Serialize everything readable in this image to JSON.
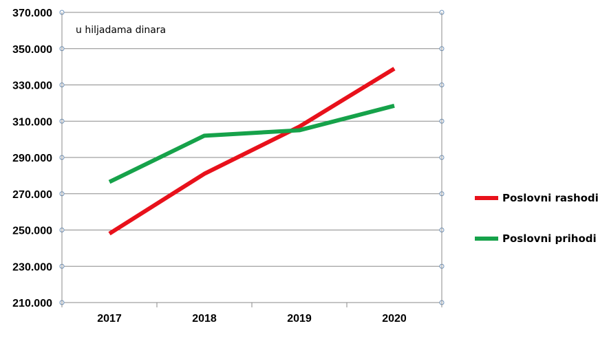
{
  "chart_data": {
    "type": "line",
    "annotation": "u hiljadama dinara",
    "categories": [
      "2017",
      "2018",
      "2019",
      "2020"
    ],
    "y_tick_labels": [
      "210.000",
      "230.000",
      "250.000",
      "270.000",
      "290.000",
      "310.000",
      "330.000",
      "350.000",
      "370.000"
    ],
    "ylim": [
      210000,
      370000
    ],
    "y_ticks": [
      210000,
      230000,
      250000,
      270000,
      290000,
      310000,
      330000,
      350000,
      370000
    ],
    "grid": true,
    "legend_position": "right",
    "series": [
      {
        "name": "Poslovni rashodi",
        "color": "#e8111b",
        "values": [
          248000,
          281000,
          307000,
          339000
        ]
      },
      {
        "name": "Poslovni prihodi",
        "color": "#16a24a",
        "values": [
          276500,
          302000,
          305000,
          318500
        ]
      }
    ]
  }
}
